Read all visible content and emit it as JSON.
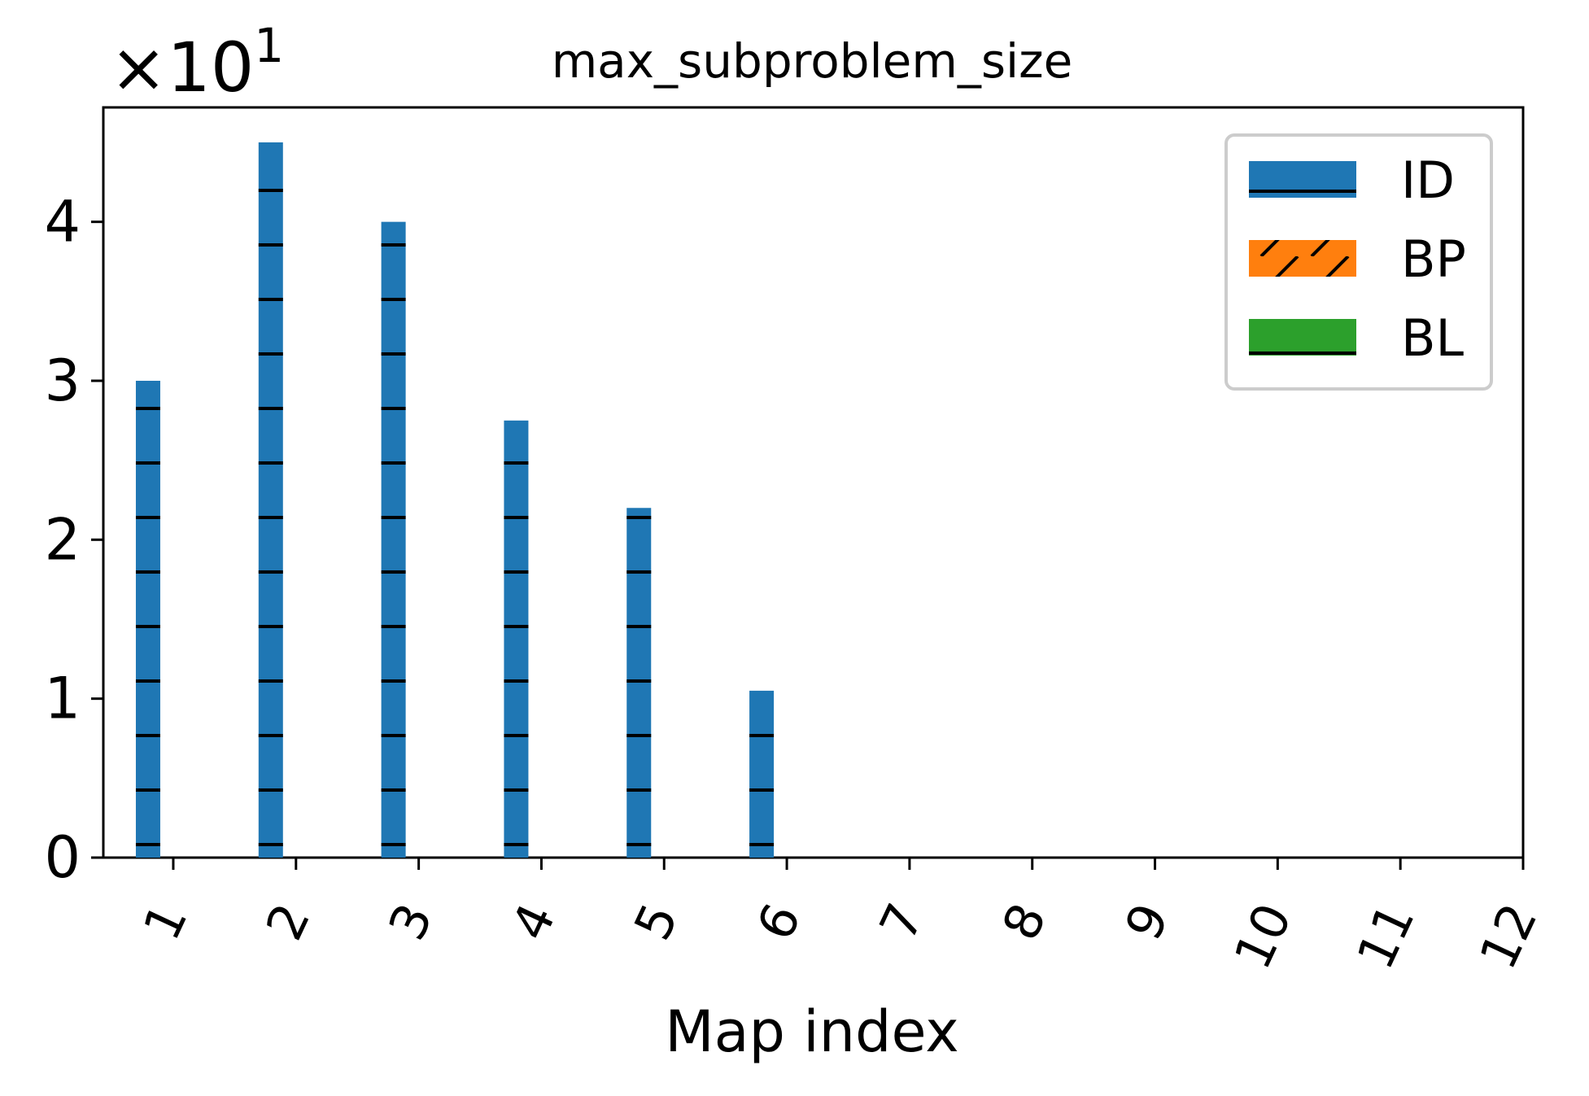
{
  "chart_data": {
    "type": "bar",
    "title": "max_subproblem_size",
    "xlabel": "Map index",
    "ylabel": "",
    "y_multiplier_label": "×10",
    "y_multiplier_exponent": "1",
    "categories": [
      "1",
      "2",
      "3",
      "4",
      "5",
      "6",
      "7",
      "8",
      "9",
      "10",
      "11",
      "12"
    ],
    "x_tick_labels": [
      "1",
      "2",
      "3",
      "4",
      "5",
      "6",
      "7",
      "8",
      "9",
      "10",
      "11",
      "12"
    ],
    "y_tick_values": [
      0,
      1,
      2,
      3,
      4
    ],
    "y_tick_labels": [
      "0",
      "1",
      "2",
      "3",
      "4"
    ],
    "ylim": [
      0,
      4.72
    ],
    "xlim": [
      0.43,
      12
    ],
    "grid": false,
    "legend_position": "top-right",
    "series": [
      {
        "name": "ID",
        "color": "#1f77b4",
        "hatch": "horizontal",
        "values": [
          3.0,
          4.5,
          4.0,
          2.75,
          2.2,
          1.05,
          0,
          0,
          0,
          0,
          0,
          0
        ]
      },
      {
        "name": "BP",
        "color": "#ff7f0e",
        "hatch": "diagonal",
        "values": [
          0,
          0,
          0,
          0,
          0,
          0,
          0,
          0,
          0,
          0,
          0,
          0
        ]
      },
      {
        "name": "BL",
        "color": "#2ca02c",
        "hatch": "horizontal",
        "values": [
          0,
          0,
          0,
          0,
          0,
          0,
          0,
          0,
          0,
          0,
          0,
          0
        ]
      }
    ]
  }
}
